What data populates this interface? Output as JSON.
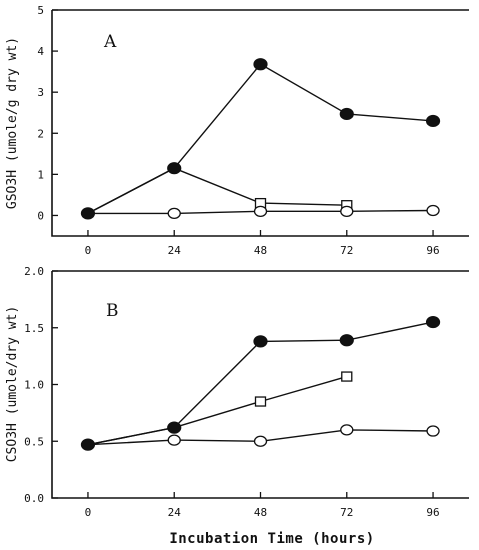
{
  "chart_data": [
    {
      "type": "line",
      "panel_label": "A",
      "ylabel": "GSO3H (umole/g dry wt)",
      "xlabel": "",
      "xlim": [
        -10,
        106
      ],
      "ylim": [
        -0.5,
        5
      ],
      "x_ticks": [
        0,
        24,
        48,
        72,
        96
      ],
      "y_ticks": [
        0,
        1,
        2,
        3,
        4,
        5
      ],
      "y_tick_labels": [
        "0",
        "1",
        "2",
        "3",
        "4",
        "5"
      ],
      "series": [
        {
          "marker": "filled-circle",
          "x": [
            0,
            24,
            48,
            72,
            96
          ],
          "values": [
            0.05,
            1.15,
            3.68,
            2.47,
            2.3
          ]
        },
        {
          "marker": "open-square",
          "x": [
            0,
            24,
            48,
            72
          ],
          "values": [
            0.05,
            1.15,
            0.3,
            0.25
          ]
        },
        {
          "marker": "open-circle",
          "x": [
            0,
            24,
            48,
            72,
            96
          ],
          "values": [
            0.05,
            0.05,
            0.1,
            0.1,
            0.12
          ]
        }
      ]
    },
    {
      "type": "line",
      "panel_label": "B",
      "ylabel": "CSO3H (umole/dry wt)",
      "xlabel": "Incubation Time (hours)",
      "xlim": [
        -10,
        106
      ],
      "ylim": [
        0.0,
        2.0
      ],
      "x_ticks": [
        0,
        24,
        48,
        72,
        96
      ],
      "y_ticks": [
        0.0,
        0.5,
        1.0,
        1.5,
        2.0
      ],
      "y_tick_labels": [
        "0.0",
        "0.5",
        "1.0",
        "1.5",
        "2.0"
      ],
      "series": [
        {
          "marker": "filled-circle",
          "x": [
            0,
            24,
            48,
            72,
            96
          ],
          "values": [
            0.47,
            0.62,
            1.38,
            1.39,
            1.55
          ]
        },
        {
          "marker": "open-square",
          "x": [
            0,
            24,
            48,
            72
          ],
          "values": [
            0.47,
            0.62,
            0.85,
            1.07
          ]
        },
        {
          "marker": "open-circle",
          "x": [
            0,
            24,
            48,
            72,
            96
          ],
          "values": [
            0.47,
            0.51,
            0.5,
            0.6,
            0.59
          ]
        }
      ]
    }
  ]
}
